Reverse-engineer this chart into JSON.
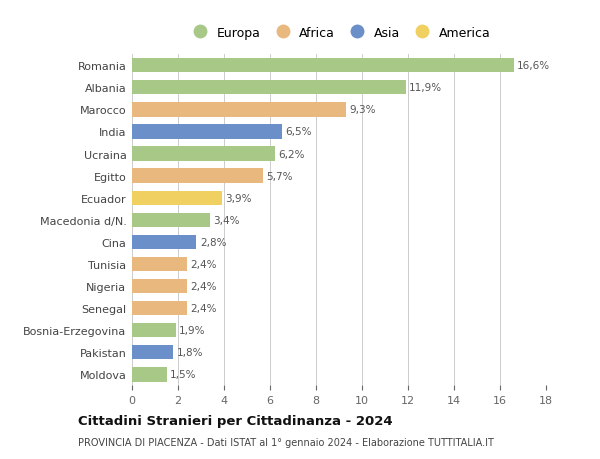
{
  "countries": [
    "Romania",
    "Albania",
    "Marocco",
    "India",
    "Ucraina",
    "Egitto",
    "Ecuador",
    "Macedonia d/N.",
    "Cina",
    "Tunisia",
    "Nigeria",
    "Senegal",
    "Bosnia-Erzegovina",
    "Pakistan",
    "Moldova"
  ],
  "values": [
    16.6,
    11.9,
    9.3,
    6.5,
    6.2,
    5.7,
    3.9,
    3.4,
    2.8,
    2.4,
    2.4,
    2.4,
    1.9,
    1.8,
    1.5
  ],
  "labels": [
    "16,6%",
    "11,9%",
    "9,3%",
    "6,5%",
    "6,2%",
    "5,7%",
    "3,9%",
    "3,4%",
    "2,8%",
    "2,4%",
    "2,4%",
    "2,4%",
    "1,9%",
    "1,8%",
    "1,5%"
  ],
  "continents": [
    "Europa",
    "Europa",
    "Africa",
    "Asia",
    "Europa",
    "Africa",
    "America",
    "Europa",
    "Asia",
    "Africa",
    "Africa",
    "Africa",
    "Europa",
    "Asia",
    "Europa"
  ],
  "colors": {
    "Europa": "#a8c888",
    "Africa": "#e8b87e",
    "Asia": "#6b8fc8",
    "America": "#f0d060"
  },
  "legend_order": [
    "Europa",
    "Africa",
    "Asia",
    "America"
  ],
  "title": "Cittadini Stranieri per Cittadinanza - 2024",
  "subtitle": "PROVINCIA DI PIACENZA - Dati ISTAT al 1° gennaio 2024 - Elaborazione TUTTITALIA.IT",
  "xlim": [
    0,
    18
  ],
  "xticks": [
    0,
    2,
    4,
    6,
    8,
    10,
    12,
    14,
    16,
    18
  ],
  "background_color": "#ffffff",
  "bar_height": 0.65,
  "grid_color": "#cccccc"
}
